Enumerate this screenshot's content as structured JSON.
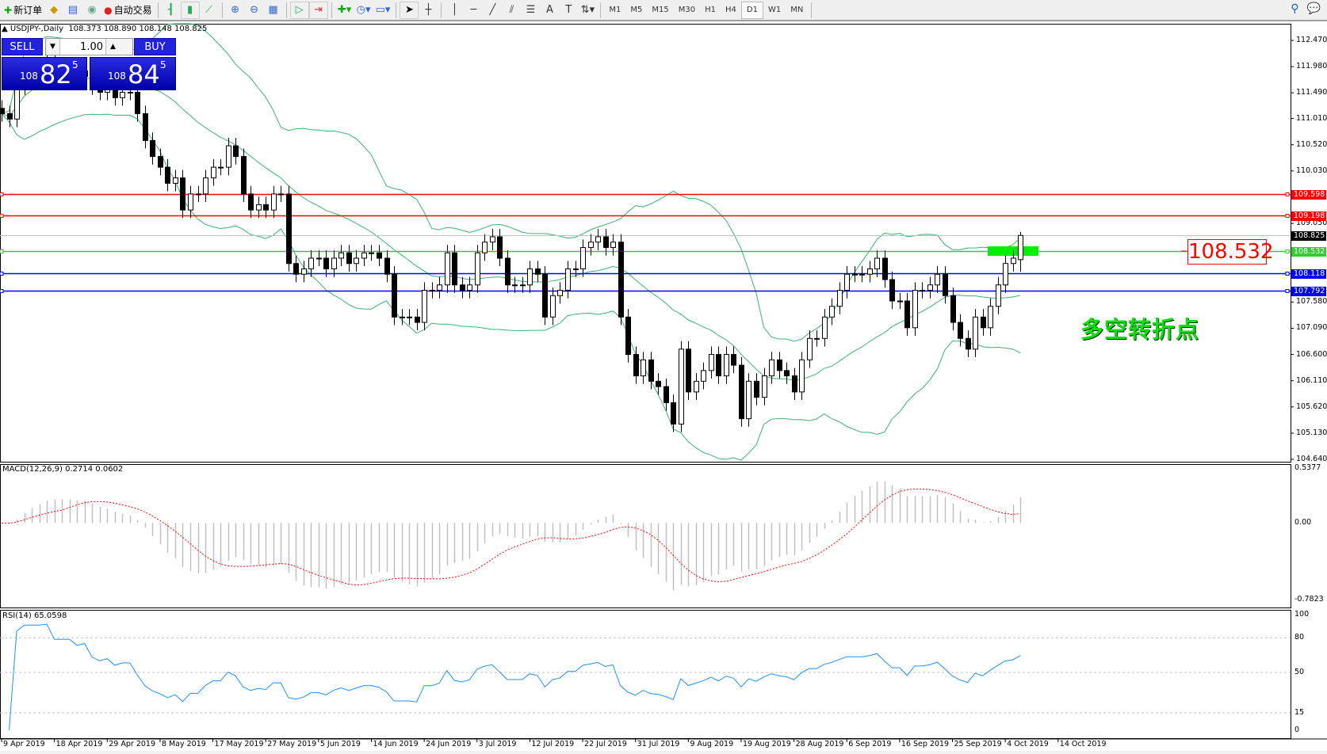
{
  "toolbar": {
    "new_order": "新订单",
    "auto_trading": "自动交易",
    "icons": [
      "new-order-icon",
      "market-watch-icon",
      "navigator-icon",
      "signals-icon",
      "auto-trading-icon",
      "bar-chart-icon",
      "candlestick-icon",
      "line-chart-icon",
      "zoom-in-icon",
      "zoom-out-icon",
      "tile-windows-icon",
      "auto-scroll-icon",
      "chart-shift-icon",
      "indicators-icon",
      "periodicity-icon",
      "templates-icon",
      "cursor-icon",
      "crosshair-icon",
      "vertical-line-icon",
      "horizontal-line-icon",
      "trendline-icon",
      "equidistant-channel-icon",
      "fibonacci-icon",
      "text-icon",
      "text-label-icon",
      "arrows-icon"
    ],
    "timeframes": [
      "M1",
      "M5",
      "M15",
      "M30",
      "H1",
      "H4",
      "D1",
      "W1",
      "MN"
    ],
    "active_timeframe": "D1"
  },
  "chart_header": {
    "symbol": "USDJPY-,Daily",
    "ohlc": "108.373 108.890 108.148 108.825"
  },
  "trade_panel": {
    "sell_label": "SELL",
    "buy_label": "BUY",
    "lot": "1.00",
    "sell_price": {
      "small": "108",
      "big": "82",
      "pip": "5"
    },
    "buy_price": {
      "small": "108",
      "big": "84",
      "pip": "5"
    }
  },
  "annotation": {
    "price_label": "108.532",
    "text": "多空转折点",
    "text_color": "#11dd11",
    "zone_color": "#00ee00"
  },
  "indicators": {
    "macd_label": "MACD(12,26,9) 0.2714 0.0602",
    "rsi_label": "RSI(14) 65.0598"
  },
  "chart_data": {
    "type": "candlestick",
    "symbol": "USDJPY",
    "timeframe": "Daily",
    "start_date": "2019-04-09",
    "closes": [
      111.1,
      111.0,
      111.6,
      112.0,
      112.0,
      112.0,
      112.1,
      111.9,
      111.9,
      111.9,
      111.8,
      111.9,
      111.6,
      111.5,
      111.6,
      111.4,
      111.5,
      111.5,
      111.1,
      110.6,
      110.3,
      110.1,
      109.8,
      109.9,
      109.3,
      109.6,
      109.6,
      109.9,
      110.1,
      110.1,
      110.5,
      110.3,
      109.6,
      109.3,
      109.4,
      109.3,
      109.6,
      109.6,
      108.3,
      108.1,
      108.2,
      108.4,
      108.4,
      108.2,
      108.4,
      108.5,
      108.3,
      108.4,
      108.5,
      108.5,
      108.4,
      108.1,
      107.3,
      107.3,
      107.3,
      107.2,
      107.8,
      107.8,
      107.9,
      108.5,
      107.9,
      107.8,
      107.9,
      108.5,
      108.7,
      108.8,
      108.4,
      107.9,
      107.9,
      107.9,
      108.2,
      108.1,
      107.3,
      107.7,
      107.8,
      108.2,
      108.2,
      108.6,
      108.7,
      108.8,
      108.6,
      108.7,
      107.3,
      106.6,
      106.2,
      106.5,
      106.1,
      106.0,
      105.7,
      105.3,
      106.7,
      105.9,
      106.1,
      106.3,
      106.6,
      106.2,
      106.6,
      106.4,
      105.4,
      106.1,
      105.8,
      106.2,
      106.5,
      106.3,
      106.2,
      105.9,
      106.5,
      106.9,
      106.9,
      107.3,
      107.5,
      107.8,
      108.1,
      108.1,
      108.1,
      108.2,
      108.4,
      108.0,
      107.6,
      107.6,
      107.1,
      107.8,
      107.8,
      107.9,
      108.1,
      107.7,
      107.2,
      106.9,
      106.7,
      107.3,
      107.1,
      107.5,
      107.9,
      108.3,
      108.4,
      108.825
    ],
    "last_bar": {
      "open": 108.373,
      "high": 108.89,
      "low": 108.148,
      "close": 108.825
    },
    "x_tick_labels": [
      "9 Apr 2019",
      "18 Apr 2019",
      "29 Apr 2019",
      "8 May 2019",
      "17 May 2019",
      "27 May 2019",
      "5 Jun 2019",
      "14 Jun 2019",
      "24 Jun 2019",
      "3 Jul 2019",
      "12 Jul 2019",
      "22 Jul 2019",
      "31 Jul 2019",
      "9 Aug 2019",
      "19 Aug 2019",
      "28 Aug 2019",
      "6 Sep 2019",
      "16 Sep 2019",
      "25 Sep 2019",
      "4 Oct 2019",
      "14 Oct 2019"
    ],
    "price_axis": {
      "ylim": [
        104.64,
        112.47
      ],
      "ticks": [
        "112.470",
        "111.980",
        "111.490",
        "111.010",
        "110.520",
        "110.030",
        "109.050",
        "107.580",
        "107.090",
        "106.600",
        "106.110",
        "105.620",
        "105.130",
        "104.640"
      ]
    },
    "horizontal_lines": [
      {
        "price": "109.598",
        "color": "#ff0000"
      },
      {
        "price": "109.198",
        "color": "#ff0000"
      },
      {
        "price": "108.825",
        "color": "#000000",
        "kind": "bid"
      },
      {
        "price": "108.532",
        "color": "#33cc33"
      },
      {
        "price": "108.118",
        "color": "#0000ff"
      },
      {
        "price": "107.792",
        "color": "#0000ff"
      }
    ],
    "bollinger": {
      "period": 20,
      "deviation": 2,
      "color": "#3cb371"
    },
    "macd": {
      "fast": 12,
      "slow": 26,
      "signal": 9,
      "ylim": [
        -0.7823,
        0.5377
      ],
      "ticks": [
        "0.5377",
        "0.00",
        "-0.7823"
      ],
      "hist_color": "#c0c0c0",
      "signal_color": "#ff0000"
    },
    "rsi": {
      "period": 14,
      "ylim": [
        0,
        100
      ],
      "levels": [
        "80",
        "50",
        "15"
      ],
      "ticks": [
        "100",
        "80",
        "50",
        "15",
        "0"
      ],
      "color": "#1e90ff"
    }
  }
}
